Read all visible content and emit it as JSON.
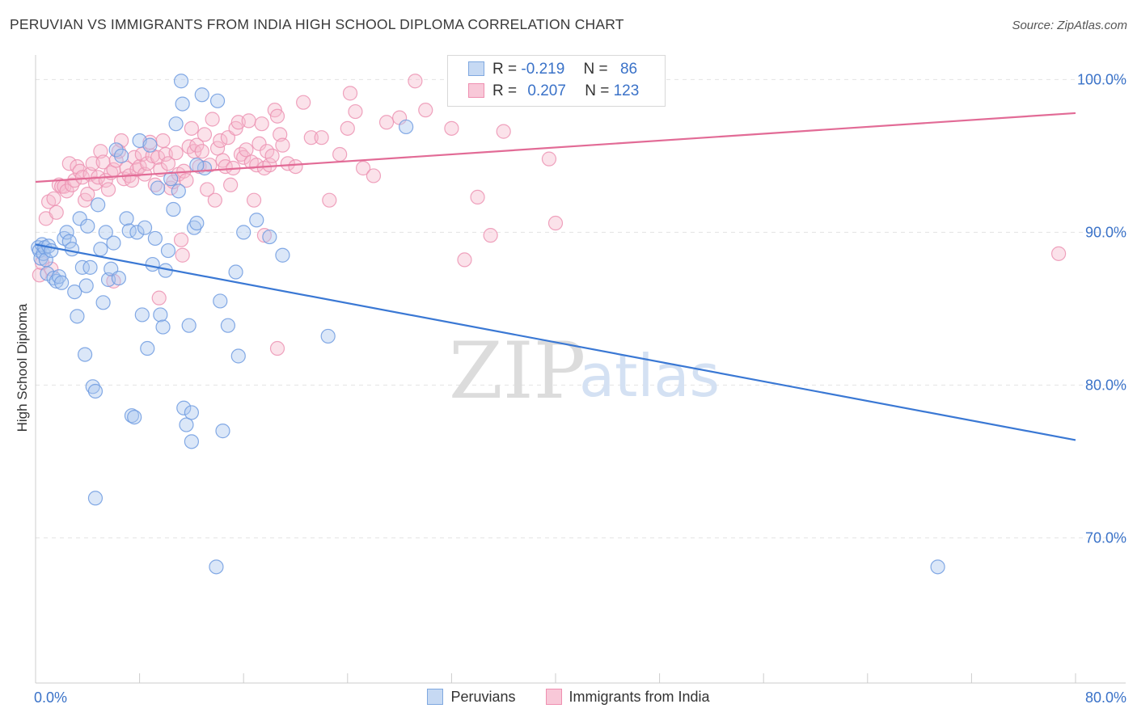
{
  "title": "PERUVIAN VS IMMIGRANTS FROM INDIA HIGH SCHOOL DIPLOMA CORRELATION CHART",
  "source": "Source: ZipAtlas.com",
  "watermark": {
    "zip": "ZIP",
    "atlas": "atlas"
  },
  "legend_stats": [
    {
      "r_label": "R =",
      "r_value": "-0.219",
      "n_label": "N =",
      "n_value": "86",
      "color": "#7fa8e0",
      "fill": "#c6d9f3"
    },
    {
      "r_label": "R =",
      "r_value": "0.207",
      "n_label": "N =",
      "n_value": "123",
      "color": "#ef8fb0",
      "fill": "#f8c8d8"
    }
  ],
  "chart_data": {
    "type": "scatter",
    "title": "PERUVIAN VS IMMIGRANTS FROM INDIA HIGH SCHOOL DIPLOMA CORRELATION CHART",
    "xlabel": "",
    "ylabel": "High School Diploma",
    "xlim": [
      0,
      80
    ],
    "ylim": [
      60.5,
      101.5
    ],
    "x_tick_labels": [
      "0.0%",
      "80.0%"
    ],
    "y_ticks": [
      70,
      80,
      90,
      100
    ],
    "y_tick_labels": [
      "70.0%",
      "80.0%",
      "90.0%",
      "100.0%"
    ],
    "grid": true,
    "series": [
      {
        "name": "Peruvians",
        "color": "#3a78d4",
        "marker_fill": "#a9c6ee",
        "marker_stroke": "#6f9be0",
        "trend": {
          "x0": 0,
          "y0": 89.2,
          "x1": 80,
          "y1": 76.4
        },
        "points": [
          [
            0.2,
            89.0
          ],
          [
            0.3,
            88.8
          ],
          [
            0.4,
            88.3
          ],
          [
            0.5,
            89.2
          ],
          [
            0.6,
            88.6
          ],
          [
            0.7,
            89.0
          ],
          [
            0.8,
            88.2
          ],
          [
            0.9,
            87.3
          ],
          [
            1.0,
            89.1
          ],
          [
            1.2,
            88.8
          ],
          [
            1.4,
            87.0
          ],
          [
            1.6,
            86.8
          ],
          [
            1.8,
            87.1
          ],
          [
            2.0,
            86.7
          ],
          [
            2.2,
            89.6
          ],
          [
            2.4,
            90.0
          ],
          [
            2.6,
            89.4
          ],
          [
            2.8,
            88.9
          ],
          [
            3.0,
            86.1
          ],
          [
            3.2,
            84.5
          ],
          [
            3.4,
            90.9
          ],
          [
            3.6,
            87.7
          ],
          [
            3.8,
            82.0
          ],
          [
            4.0,
            90.4
          ],
          [
            4.2,
            87.7
          ],
          [
            4.4,
            79.9
          ],
          [
            4.6,
            79.6
          ],
          [
            4.8,
            91.8
          ],
          [
            5.0,
            88.9
          ],
          [
            5.2,
            85.4
          ],
          [
            5.4,
            90.0
          ],
          [
            5.6,
            86.9
          ],
          [
            5.8,
            87.6
          ],
          [
            6.0,
            89.3
          ],
          [
            6.2,
            95.4
          ],
          [
            6.4,
            87.0
          ],
          [
            6.6,
            95.0
          ],
          [
            7.0,
            90.9
          ],
          [
            7.2,
            90.1
          ],
          [
            7.4,
            78.0
          ],
          [
            7.6,
            77.9
          ],
          [
            7.8,
            90.0
          ],
          [
            8.0,
            96.0
          ],
          [
            8.2,
            84.6
          ],
          [
            8.4,
            90.3
          ],
          [
            8.6,
            82.4
          ],
          [
            8.8,
            95.7
          ],
          [
            9.0,
            87.9
          ],
          [
            9.2,
            89.6
          ],
          [
            9.4,
            92.9
          ],
          [
            9.6,
            84.6
          ],
          [
            9.8,
            83.8
          ],
          [
            10.0,
            87.5
          ],
          [
            10.2,
            88.8
          ],
          [
            10.4,
            93.5
          ],
          [
            10.6,
            91.5
          ],
          [
            10.8,
            97.1
          ],
          [
            11.0,
            92.7
          ],
          [
            11.4,
            78.5
          ],
          [
            11.6,
            77.4
          ],
          [
            11.8,
            83.9
          ],
          [
            12.0,
            76.3
          ],
          [
            12.2,
            90.3
          ],
          [
            12.4,
            90.6
          ],
          [
            11.2,
            99.9
          ],
          [
            11.3,
            98.4
          ],
          [
            12.8,
            99.0
          ],
          [
            13.0,
            94.2
          ],
          [
            14.0,
            98.6
          ],
          [
            14.4,
            77.0
          ],
          [
            12.0,
            78.2
          ],
          [
            12.4,
            94.4
          ],
          [
            14.2,
            85.5
          ],
          [
            14.8,
            83.9
          ],
          [
            15.4,
            87.4
          ],
          [
            15.6,
            81.9
          ],
          [
            16.0,
            90.0
          ],
          [
            17.0,
            90.8
          ],
          [
            18.0,
            89.7
          ],
          [
            19.0,
            88.5
          ],
          [
            4.6,
            72.6
          ],
          [
            13.9,
            68.1
          ],
          [
            69.4,
            68.1
          ],
          [
            22.5,
            83.2
          ],
          [
            28.5,
            96.9
          ],
          [
            3.9,
            86.5
          ]
        ]
      },
      {
        "name": "Immigrants from India",
        "color": "#e26b96",
        "marker_fill": "#f6b9cd",
        "marker_stroke": "#ec93b3",
        "trend": {
          "x0": 0,
          "y0": 93.3,
          "x1": 80,
          "y1": 97.8
        },
        "points": [
          [
            0.3,
            87.2
          ],
          [
            0.5,
            88.0
          ],
          [
            0.8,
            90.9
          ],
          [
            1.0,
            92.0
          ],
          [
            1.2,
            87.6
          ],
          [
            1.4,
            92.2
          ],
          [
            1.6,
            91.3
          ],
          [
            1.8,
            93.1
          ],
          [
            2.0,
            93.0
          ],
          [
            2.2,
            93.0
          ],
          [
            2.4,
            92.7
          ],
          [
            2.6,
            94.5
          ],
          [
            2.8,
            93.1
          ],
          [
            3.0,
            93.4
          ],
          [
            3.2,
            94.3
          ],
          [
            3.4,
            94.0
          ],
          [
            3.6,
            93.6
          ],
          [
            3.8,
            92.1
          ],
          [
            4.0,
            92.5
          ],
          [
            4.2,
            93.8
          ],
          [
            4.4,
            94.5
          ],
          [
            4.6,
            93.2
          ],
          [
            4.8,
            93.6
          ],
          [
            5.0,
            95.3
          ],
          [
            5.2,
            94.6
          ],
          [
            5.4,
            93.4
          ],
          [
            5.6,
            92.8
          ],
          [
            5.8,
            93.9
          ],
          [
            6.0,
            94.1
          ],
          [
            6.2,
            94.7
          ],
          [
            6.4,
            95.3
          ],
          [
            6.6,
            96.0
          ],
          [
            6.8,
            93.5
          ],
          [
            7.0,
            94.2
          ],
          [
            7.2,
            93.7
          ],
          [
            7.4,
            93.4
          ],
          [
            7.6,
            94.9
          ],
          [
            7.8,
            94.1
          ],
          [
            8.0,
            94.3
          ],
          [
            8.2,
            95.1
          ],
          [
            8.4,
            93.8
          ],
          [
            8.6,
            94.5
          ],
          [
            8.8,
            95.9
          ],
          [
            9.0,
            95.0
          ],
          [
            9.2,
            93.1
          ],
          [
            9.4,
            94.9
          ],
          [
            9.6,
            94.1
          ],
          [
            9.8,
            96.0
          ],
          [
            10.0,
            95.1
          ],
          [
            10.2,
            94.5
          ],
          [
            10.4,
            92.9
          ],
          [
            10.6,
            93.3
          ],
          [
            10.8,
            95.2
          ],
          [
            11.0,
            93.8
          ],
          [
            11.2,
            89.5
          ],
          [
            11.4,
            94.0
          ],
          [
            11.6,
            93.4
          ],
          [
            11.8,
            95.6
          ],
          [
            12.0,
            96.8
          ],
          [
            12.2,
            95.3
          ],
          [
            12.4,
            95.7
          ],
          [
            12.6,
            94.3
          ],
          [
            12.8,
            95.3
          ],
          [
            13.0,
            96.4
          ],
          [
            13.2,
            92.8
          ],
          [
            13.4,
            94.4
          ],
          [
            13.6,
            97.4
          ],
          [
            13.8,
            92.1
          ],
          [
            14.0,
            95.5
          ],
          [
            14.2,
            96.0
          ],
          [
            14.4,
            94.7
          ],
          [
            14.6,
            94.3
          ],
          [
            14.8,
            96.2
          ],
          [
            15.0,
            93.1
          ],
          [
            15.2,
            94.2
          ],
          [
            15.4,
            96.8
          ],
          [
            15.6,
            97.2
          ],
          [
            15.8,
            95.1
          ],
          [
            16.0,
            94.9
          ],
          [
            16.2,
            95.4
          ],
          [
            16.4,
            97.3
          ],
          [
            16.6,
            94.6
          ],
          [
            16.8,
            92.1
          ],
          [
            17.0,
            94.4
          ],
          [
            17.2,
            95.8
          ],
          [
            17.4,
            97.1
          ],
          [
            17.6,
            94.2
          ],
          [
            17.8,
            95.3
          ],
          [
            18.0,
            94.4
          ],
          [
            18.2,
            95.0
          ],
          [
            18.4,
            98.0
          ],
          [
            18.6,
            97.6
          ],
          [
            18.8,
            96.4
          ],
          [
            19.0,
            95.7
          ],
          [
            19.4,
            94.5
          ],
          [
            20.0,
            94.3
          ],
          [
            20.6,
            98.5
          ],
          [
            21.2,
            96.2
          ],
          [
            22.0,
            96.2
          ],
          [
            22.6,
            92.1
          ],
          [
            23.4,
            95.1
          ],
          [
            24.0,
            96.8
          ],
          [
            24.6,
            97.9
          ],
          [
            25.2,
            94.2
          ],
          [
            26.0,
            93.7
          ],
          [
            27.0,
            97.2
          ],
          [
            28.0,
            97.5
          ],
          [
            29.2,
            99.9
          ],
          [
            30.0,
            98.0
          ],
          [
            32.0,
            96.8
          ],
          [
            34.0,
            92.3
          ],
          [
            35.0,
            89.8
          ],
          [
            36.0,
            96.6
          ],
          [
            39.5,
            94.8
          ],
          [
            40.0,
            90.6
          ],
          [
            33.0,
            88.2
          ],
          [
            17.6,
            89.8
          ],
          [
            9.5,
            85.7
          ],
          [
            6.0,
            86.8
          ],
          [
            18.6,
            82.4
          ],
          [
            78.7,
            88.6
          ],
          [
            11.3,
            88.5
          ],
          [
            24.2,
            99.1
          ]
        ]
      }
    ],
    "legend": [
      "Peruvians",
      "Immigrants from India"
    ],
    "legend_position": "bottom-center"
  }
}
